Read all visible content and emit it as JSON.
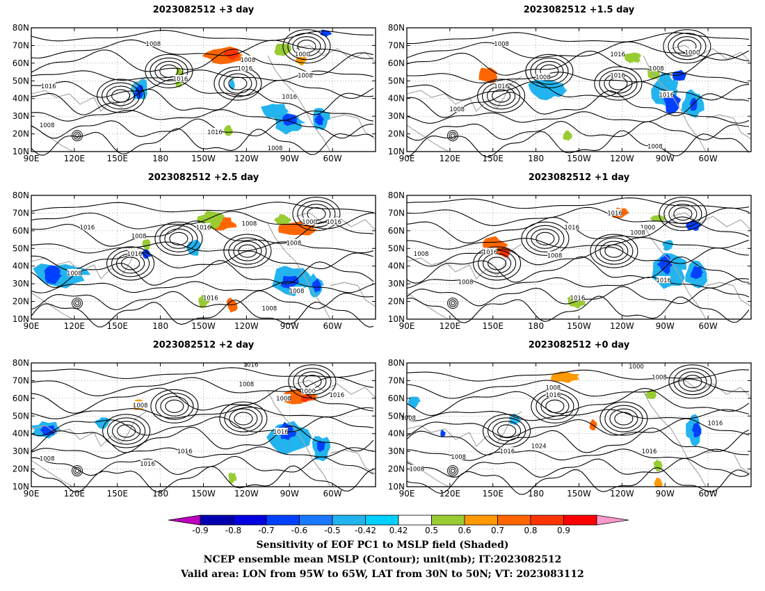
{
  "figure": {
    "captions": [
      "Sensitivity of EOF PC1 to MSLP field (Shaded)",
      "NCEP ensemble mean MSLP (Contour); unit(mb); IT:2023082512",
      "Valid area: LON from 95W to 65W, LAT from 30N to 50N; VT: 2023083112"
    ]
  },
  "chart_data": {
    "type": "heatmap",
    "x_tick_labels": [
      "90E",
      "120E",
      "150E",
      "180",
      "150W",
      "120W",
      "90W",
      "60W"
    ],
    "y_tick_labels": [
      "10N",
      "20N",
      "30N",
      "40N",
      "50N",
      "60N",
      "70N",
      "80N"
    ],
    "colorbar": {
      "levels": [
        "-0.9",
        "-0.8",
        "-0.7",
        "-0.6",
        "-0.5",
        "-0.42",
        "0.42",
        "0.5",
        "0.6",
        "0.7",
        "0.8",
        "0.9"
      ],
      "colors": [
        "#c000c0",
        "#0000b0",
        "#0000e0",
        "#0040ff",
        "#1a78ff",
        "#22b4ee",
        "#00d0ff",
        "#ffffff",
        "#99cc33",
        "#ff9900",
        "#ff6600",
        "#ff3300",
        "#ff0000",
        "#ff99cc"
      ]
    },
    "panels": [
      {
        "title": "2023082512 +3 day",
        "labels": [
          {
            "t": "1008",
            "lon": 175,
            "lat": 71
          },
          {
            "t": "1000",
            "lon": -81,
            "lat": 65
          },
          {
            "t": "1008",
            "lon": -119,
            "lat": 62
          },
          {
            "t": "1016",
            "lon": -121,
            "lat": 57
          },
          {
            "t": "1016",
            "lon": -166,
            "lat": 51
          },
          {
            "t": "1016",
            "lon": 102,
            "lat": 47
          },
          {
            "t": "1008",
            "lon": -79,
            "lat": 53
          },
          {
            "t": "1016",
            "lon": -90,
            "lat": 41
          },
          {
            "t": "1008",
            "lon": 101,
            "lat": 25
          },
          {
            "t": "1016",
            "lon": -142,
            "lat": 21
          },
          {
            "t": "1008",
            "lon": -100,
            "lat": 12
          }
        ],
        "blobs": [
          {
            "lon": -135,
            "lat": 64,
            "rx": 14,
            "ry": 5,
            "c": "#ff6600"
          },
          {
            "lon": -130,
            "lat": 65,
            "rx": 5,
            "ry": 3,
            "c": "#ff3300"
          },
          {
            "lon": -82,
            "lat": 62,
            "rx": 4,
            "ry": 3,
            "c": "#ff9900"
          },
          {
            "lon": -95,
            "lat": 68,
            "rx": 6,
            "ry": 4,
            "c": "#99cc33"
          },
          {
            "lon": -167,
            "lat": 52,
            "rx": 3,
            "ry": 6,
            "c": "#99cc33"
          },
          {
            "lon": -133,
            "lat": 22,
            "rx": 3,
            "ry": 3,
            "c": "#99cc33"
          },
          {
            "lon": 166,
            "lat": 45,
            "rx": 6,
            "ry": 6,
            "c": "#22b4ee"
          },
          {
            "lon": 165,
            "lat": 44,
            "rx": 3,
            "ry": 4,
            "c": "#0040ff"
          },
          {
            "lon": -100,
            "lat": 33,
            "rx": 10,
            "ry": 5,
            "c": "#22b4ee"
          },
          {
            "lon": -90,
            "lat": 26,
            "rx": 10,
            "ry": 6,
            "c": "#22b4ee"
          },
          {
            "lon": -68,
            "lat": 28,
            "rx": 6,
            "ry": 7,
            "c": "#22b4ee"
          },
          {
            "lon": -90,
            "lat": 28,
            "rx": 5,
            "ry": 3,
            "c": "#0040ff"
          },
          {
            "lon": -69,
            "lat": 28,
            "rx": 3,
            "ry": 3,
            "c": "#0040ff"
          },
          {
            "lon": -65,
            "lat": 77,
            "rx": 4,
            "ry": 2,
            "c": "#0040ff"
          },
          {
            "lon": -130,
            "lat": 48,
            "rx": 2,
            "ry": 3,
            "c": "#22b4ee"
          }
        ]
      },
      {
        "title": "2023082512 +1.5 day",
        "labels": [
          {
            "t": "1008",
            "lon": 156,
            "lat": 71
          },
          {
            "t": "1000",
            "lon": -71,
            "lat": 66
          },
          {
            "t": "1016",
            "lon": -123,
            "lat": 65
          },
          {
            "t": "1008",
            "lon": -96,
            "lat": 57
          },
          {
            "t": "1016",
            "lon": -123,
            "lat": 53
          },
          {
            "t": "1008",
            "lon": -175,
            "lat": 52
          },
          {
            "t": "1016",
            "lon": 156,
            "lat": 47
          },
          {
            "t": "1016",
            "lon": -89,
            "lat": 42
          },
          {
            "t": "1008",
            "lon": 125,
            "lat": 34
          },
          {
            "t": "1008",
            "lon": -97,
            "lat": 13
          }
        ],
        "blobs": [
          {
            "lon": 147,
            "lat": 53,
            "rx": 7,
            "ry": 5,
            "c": "#ff6600"
          },
          {
            "lon": -113,
            "lat": 63,
            "rx": 6,
            "ry": 3,
            "c": "#99cc33"
          },
          {
            "lon": -98,
            "lat": 54,
            "rx": 4,
            "ry": 4,
            "c": "#99cc33"
          },
          {
            "lon": -158,
            "lat": 19,
            "rx": 3,
            "ry": 3,
            "c": "#99cc33"
          },
          {
            "lon": -175,
            "lat": 45,
            "rx": 10,
            "ry": 6,
            "c": "#22b4ee"
          },
          {
            "lon": -165,
            "lat": 45,
            "rx": 6,
            "ry": 5,
            "c": "#22b4ee"
          },
          {
            "lon": -90,
            "lat": 45,
            "rx": 10,
            "ry": 10,
            "c": "#22b4ee"
          },
          {
            "lon": -85,
            "lat": 37,
            "rx": 6,
            "ry": 5,
            "c": "#0040ff"
          },
          {
            "lon": -70,
            "lat": 37,
            "rx": 8,
            "ry": 8,
            "c": "#22b4ee"
          },
          {
            "lon": -70,
            "lat": 37,
            "rx": 3,
            "ry": 4,
            "c": "#0040ff"
          },
          {
            "lon": -80,
            "lat": 53,
            "rx": 5,
            "ry": 3,
            "c": "#0040ff"
          }
        ]
      },
      {
        "title": "2023082512 +2.5 day",
        "labels": [
          {
            "t": "1016",
            "lon": 129,
            "lat": 62
          },
          {
            "t": "1008",
            "lon": -118,
            "lat": 64
          },
          {
            "t": "1016",
            "lon": -150,
            "lat": 62
          },
          {
            "t": "1000",
            "lon": -76,
            "lat": 65
          },
          {
            "t": "1016",
            "lon": -59,
            "lat": 65
          },
          {
            "t": "1008",
            "lon": -87,
            "lat": 53
          },
          {
            "t": "1008",
            "lon": 165,
            "lat": 57
          },
          {
            "t": "1016",
            "lon": 162,
            "lat": 47
          },
          {
            "t": "1008",
            "lon": 120,
            "lat": 36
          },
          {
            "t": "1016",
            "lon": -145,
            "lat": 22
          },
          {
            "t": "1008",
            "lon": -85,
            "lat": 26
          },
          {
            "t": "1008",
            "lon": -104,
            "lat": 16
          }
        ],
        "blobs": [
          {
            "lon": -139,
            "lat": 64,
            "rx": 12,
            "ry": 4,
            "c": "#ff6600"
          },
          {
            "lon": -145,
            "lat": 66,
            "rx": 10,
            "ry": 5,
            "c": "#99cc33"
          },
          {
            "lon": -85,
            "lat": 61,
            "rx": 12,
            "ry": 4,
            "c": "#ff6600"
          },
          {
            "lon": -95,
            "lat": 66,
            "rx": 6,
            "ry": 3,
            "c": "#99cc33"
          },
          {
            "lon": -130,
            "lat": 18,
            "rx": 4,
            "ry": 4,
            "c": "#ff6600"
          },
          {
            "lon": -150,
            "lat": 20,
            "rx": 4,
            "ry": 4,
            "c": "#99cc33"
          },
          {
            "lon": 170,
            "lat": 52,
            "rx": 3,
            "ry": 3,
            "c": "#99cc33"
          },
          {
            "lon": 110,
            "lat": 35,
            "rx": 18,
            "ry": 7,
            "c": "#22b4ee"
          },
          {
            "lon": 105,
            "lat": 35,
            "rx": 6,
            "ry": 5,
            "c": "#0040ff"
          },
          {
            "lon": 170,
            "lat": 47,
            "rx": 3,
            "ry": 3,
            "c": "#0040ff"
          },
          {
            "lon": -157,
            "lat": 50,
            "rx": 5,
            "ry": 5,
            "c": "#22b4ee"
          },
          {
            "lon": -90,
            "lat": 32,
            "rx": 14,
            "ry": 8,
            "c": "#22b4ee"
          },
          {
            "lon": -72,
            "lat": 29,
            "rx": 5,
            "ry": 6,
            "c": "#22b4ee"
          },
          {
            "lon": -90,
            "lat": 31,
            "rx": 6,
            "ry": 4,
            "c": "#0040ff"
          },
          {
            "lon": -71,
            "lat": 29,
            "rx": 3,
            "ry": 4,
            "c": "#0040ff"
          }
        ]
      },
      {
        "title": "2023082512 +1 day",
        "labels": [
          {
            "t": "1016",
            "lon": -125,
            "lat": 70
          },
          {
            "t": "1016",
            "lon": -155,
            "lat": 62
          },
          {
            "t": "1000",
            "lon": -102,
            "lat": 62
          },
          {
            "t": "1008",
            "lon": -109,
            "lat": 59
          },
          {
            "t": "1008",
            "lon": 100,
            "lat": 47
          },
          {
            "t": "1016",
            "lon": 148,
            "lat": 48
          },
          {
            "t": "1008",
            "lon": -167,
            "lat": 46
          },
          {
            "t": "1016",
            "lon": -91,
            "lat": 32
          },
          {
            "t": "1008",
            "lon": 131,
            "lat": 31
          },
          {
            "t": "1016",
            "lon": -151,
            "lat": 22
          }
        ],
        "blobs": [
          {
            "lon": 150,
            "lat": 52,
            "rx": 9,
            "ry": 5,
            "c": "#ff6600"
          },
          {
            "lon": 158,
            "lat": 48,
            "rx": 4,
            "ry": 3,
            "c": "#ff3300"
          },
          {
            "lon": -122,
            "lat": 70,
            "rx": 6,
            "ry": 3,
            "c": "#ff6600"
          },
          {
            "lon": -152,
            "lat": 20,
            "rx": 6,
            "ry": 4,
            "c": "#99cc33"
          },
          {
            "lon": -95,
            "lat": 67,
            "rx": 5,
            "ry": 2,
            "c": "#99cc33"
          },
          {
            "lon": -88,
            "lat": 38,
            "rx": 12,
            "ry": 10,
            "c": "#22b4ee"
          },
          {
            "lon": -90,
            "lat": 41,
            "rx": 5,
            "ry": 5,
            "c": "#0040ff"
          },
          {
            "lon": -68,
            "lat": 35,
            "rx": 8,
            "ry": 8,
            "c": "#22b4ee"
          },
          {
            "lon": -68,
            "lat": 36,
            "rx": 4,
            "ry": 4,
            "c": "#0040ff"
          },
          {
            "lon": -70,
            "lat": 63,
            "rx": 5,
            "ry": 3,
            "c": "#0040ff"
          },
          {
            "lon": -88,
            "lat": 52,
            "rx": 4,
            "ry": 3,
            "c": "#22b4ee"
          }
        ]
      },
      {
        "title": "2023082512 +2 day",
        "labels": [
          {
            "t": "1016",
            "lon": -117,
            "lat": 79
          },
          {
            "t": "1008",
            "lon": -120,
            "lat": 68
          },
          {
            "t": "1000",
            "lon": -77,
            "lat": 64
          },
          {
            "t": "1008",
            "lon": -94,
            "lat": 60
          },
          {
            "t": "1016",
            "lon": -57,
            "lat": 62
          },
          {
            "t": "1008",
            "lon": 166,
            "lat": 56
          },
          {
            "t": "1016",
            "lon": -96,
            "lat": 41
          },
          {
            "t": "1016",
            "lon": -163,
            "lat": 30
          },
          {
            "t": "1008",
            "lon": 101,
            "lat": 26
          },
          {
            "t": "1016",
            "lon": 171,
            "lat": 23
          }
        ],
        "blobs": [
          {
            "lon": -85,
            "lat": 61,
            "rx": 13,
            "ry": 4,
            "c": "#ff6600"
          },
          {
            "lon": -78,
            "lat": 60,
            "rx": 4,
            "ry": 2,
            "c": "#ff3300"
          },
          {
            "lon": 165,
            "lat": 56,
            "rx": 4,
            "ry": 3,
            "c": "#ff9900"
          },
          {
            "lon": -130,
            "lat": 15,
            "rx": 3,
            "ry": 3,
            "c": "#99cc33"
          },
          {
            "lon": 100,
            "lat": 42,
            "rx": 10,
            "ry": 5,
            "c": "#22b4ee"
          },
          {
            "lon": 102,
            "lat": 42,
            "rx": 5,
            "ry": 3,
            "c": "#0040ff"
          },
          {
            "lon": 140,
            "lat": 46,
            "rx": 5,
            "ry": 3,
            "c": "#22b4ee"
          },
          {
            "lon": -90,
            "lat": 38,
            "rx": 14,
            "ry": 10,
            "c": "#22b4ee"
          },
          {
            "lon": -92,
            "lat": 41,
            "rx": 6,
            "ry": 5,
            "c": "#0040ff"
          },
          {
            "lon": -68,
            "lat": 32,
            "rx": 6,
            "ry": 7,
            "c": "#22b4ee"
          },
          {
            "lon": -68,
            "lat": 33,
            "rx": 3,
            "ry": 3,
            "c": "#0040ff"
          }
        ]
      },
      {
        "title": "2023082512 +0 day",
        "labels": [
          {
            "t": "1000",
            "lon": -110,
            "lat": 78
          },
          {
            "t": "1008",
            "lon": -94,
            "lat": 72
          },
          {
            "t": "1008",
            "lon": -168,
            "lat": 66
          },
          {
            "t": "1016",
            "lon": -168,
            "lat": 62
          },
          {
            "t": "1008",
            "lon": 91,
            "lat": 49
          },
          {
            "t": "1016",
            "lon": -55,
            "lat": 46
          },
          {
            "t": "1024",
            "lon": -178,
            "lat": 33
          },
          {
            "t": "1016",
            "lon": 160,
            "lat": 30
          },
          {
            "t": "1016",
            "lon": -101,
            "lat": 30
          },
          {
            "t": "1008",
            "lon": 126,
            "lat": 27
          },
          {
            "t": "1008",
            "lon": 97,
            "lat": 20
          }
        ],
        "blobs": [
          {
            "lon": -160,
            "lat": 72,
            "rx": 10,
            "ry": 3,
            "c": "#ff9900"
          },
          {
            "lon": -140,
            "lat": 45,
            "rx": 3,
            "ry": 3,
            "c": "#ff6600"
          },
          {
            "lon": -95,
            "lat": 12,
            "rx": 3,
            "ry": 3,
            "c": "#ff9900"
          },
          {
            "lon": -95,
            "lat": 22,
            "rx": 3,
            "ry": 3,
            "c": "#99cc33"
          },
          {
            "lon": -100,
            "lat": 62,
            "rx": 4,
            "ry": 3,
            "c": "#99cc33"
          },
          {
            "lon": -70,
            "lat": 42,
            "rx": 6,
            "ry": 8,
            "c": "#22b4ee"
          },
          {
            "lon": -68,
            "lat": 42,
            "rx": 3,
            "ry": 4,
            "c": "#0040ff"
          },
          {
            "lon": 165,
            "lat": 48,
            "rx": 4,
            "ry": 3,
            "c": "#22b4ee"
          },
          {
            "lon": 95,
            "lat": 58,
            "rx": 4,
            "ry": 3,
            "c": "#22b4ee"
          },
          {
            "lon": 115,
            "lat": 40,
            "rx": 2,
            "ry": 2,
            "c": "#0040ff"
          }
        ]
      }
    ]
  }
}
